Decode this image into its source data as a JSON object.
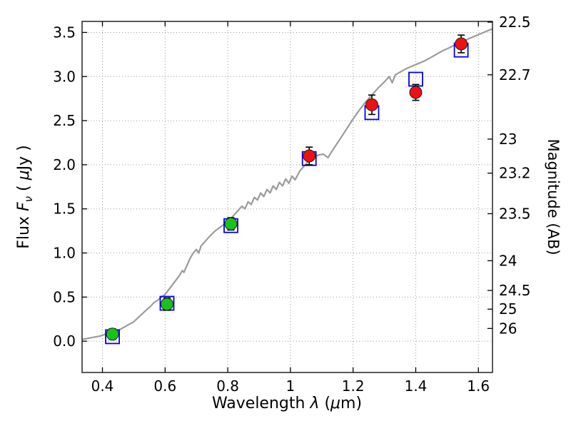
{
  "chart_data": {
    "type": "line",
    "title": "",
    "xlabel_parts": [
      "Wavelength  ",
      "λ",
      " (",
      "μ",
      "m)"
    ],
    "ylabel_left_parts": [
      "Flux  ",
      "F",
      "ν",
      " ( ",
      "μ",
      "Jy )"
    ],
    "ylabel_right": "Magnitude (AB)",
    "xlim": [
      0.335,
      1.645
    ],
    "ylim": [
      -0.355,
      3.625
    ],
    "grid": true,
    "legend": "none",
    "xticks": {
      "values": [
        0.4,
        0.6,
        0.8,
        1.0,
        1.2,
        1.4,
        1.6
      ],
      "labels": [
        "0.4",
        "0.6",
        "0.8",
        "1",
        "1.2",
        "1.4",
        "1.6"
      ]
    },
    "yticks_left": {
      "values": [
        0.0,
        0.5,
        1.0,
        1.5,
        2.0,
        2.5,
        3.0,
        3.5
      ],
      "labels": [
        "0.0",
        "0.5",
        "1.0",
        "1.5",
        "2.0",
        "2.5",
        "3.0",
        "3.5"
      ]
    },
    "yticks_right": {
      "mag_labels": [
        "22.5",
        "22.7",
        "23",
        "23.2",
        "23.5",
        "24",
        "24.5",
        "25",
        "26"
      ],
      "flux_values": [
        3.631,
        3.02,
        2.291,
        1.905,
        1.445,
        0.912,
        0.575,
        0.363,
        0.144
      ]
    },
    "colors": {
      "spectrum": "#9b9b9b",
      "model_square": "#0000ee",
      "observed_green": "#17c317",
      "observed_red": "#ee1111",
      "errorbar": "#000000",
      "grid": "#9a9a9a"
    },
    "series": [
      {
        "name": "model-spectrum",
        "type": "line",
        "color": "#9b9b9b",
        "points": [
          [
            0.335,
            0.02
          ],
          [
            0.35,
            0.03
          ],
          [
            0.365,
            0.04
          ],
          [
            0.38,
            0.05
          ],
          [
            0.395,
            0.06
          ],
          [
            0.41,
            0.08
          ],
          [
            0.425,
            0.09
          ],
          [
            0.44,
            0.11
          ],
          [
            0.455,
            0.13
          ],
          [
            0.47,
            0.16
          ],
          [
            0.485,
            0.19
          ],
          [
            0.5,
            0.22
          ],
          [
            0.515,
            0.27
          ],
          [
            0.53,
            0.32
          ],
          [
            0.545,
            0.37
          ],
          [
            0.555,
            0.4
          ],
          [
            0.565,
            0.44
          ],
          [
            0.575,
            0.46
          ],
          [
            0.585,
            0.49
          ],
          [
            0.6,
            0.53
          ],
          [
            0.615,
            0.6
          ],
          [
            0.63,
            0.67
          ],
          [
            0.645,
            0.74
          ],
          [
            0.655,
            0.8
          ],
          [
            0.66,
            0.78
          ],
          [
            0.67,
            0.86
          ],
          [
            0.68,
            0.94
          ],
          [
            0.69,
            1.0
          ],
          [
            0.7,
            1.04
          ],
          [
            0.707,
            1.0
          ],
          [
            0.715,
            1.08
          ],
          [
            0.73,
            1.14
          ],
          [
            0.745,
            1.2
          ],
          [
            0.76,
            1.25
          ],
          [
            0.775,
            1.29
          ],
          [
            0.79,
            1.33
          ],
          [
            0.8,
            1.36
          ],
          [
            0.815,
            1.41
          ],
          [
            0.83,
            1.47
          ],
          [
            0.845,
            1.53
          ],
          [
            0.855,
            1.5
          ],
          [
            0.865,
            1.58
          ],
          [
            0.875,
            1.55
          ],
          [
            0.885,
            1.63
          ],
          [
            0.895,
            1.6
          ],
          [
            0.905,
            1.68
          ],
          [
            0.915,
            1.64
          ],
          [
            0.925,
            1.72
          ],
          [
            0.935,
            1.68
          ],
          [
            0.945,
            1.76
          ],
          [
            0.955,
            1.72
          ],
          [
            0.965,
            1.8
          ],
          [
            0.975,
            1.76
          ],
          [
            0.985,
            1.84
          ],
          [
            0.995,
            1.79
          ],
          [
            1.005,
            1.87
          ],
          [
            1.015,
            1.83
          ],
          [
            1.03,
            1.93
          ],
          [
            1.045,
            1.99
          ],
          [
            1.06,
            2.05
          ],
          [
            1.075,
            2.09
          ],
          [
            1.09,
            2.11
          ],
          [
            1.105,
            2.12
          ],
          [
            1.12,
            2.08
          ],
          [
            1.13,
            2.14
          ],
          [
            1.145,
            2.22
          ],
          [
            1.16,
            2.3
          ],
          [
            1.18,
            2.41
          ],
          [
            1.2,
            2.52
          ],
          [
            1.22,
            2.62
          ],
          [
            1.24,
            2.71
          ],
          [
            1.26,
            2.79
          ],
          [
            1.28,
            2.87
          ],
          [
            1.3,
            2.94
          ],
          [
            1.315,
            3.0
          ],
          [
            1.325,
            2.93
          ],
          [
            1.335,
            3.02
          ],
          [
            1.35,
            3.05
          ],
          [
            1.37,
            3.09
          ],
          [
            1.39,
            3.12
          ],
          [
            1.41,
            3.15
          ],
          [
            1.43,
            3.18
          ],
          [
            1.45,
            3.22
          ],
          [
            1.47,
            3.26
          ],
          [
            1.49,
            3.3
          ],
          [
            1.51,
            3.33
          ],
          [
            1.53,
            3.37
          ],
          [
            1.55,
            3.4
          ],
          [
            1.57,
            3.43
          ],
          [
            1.59,
            3.46
          ],
          [
            1.61,
            3.49
          ],
          [
            1.63,
            3.52
          ],
          [
            1.645,
            3.54
          ]
        ]
      },
      {
        "name": "model-photometry",
        "type": "scatter-square-open",
        "color": "#0000ee",
        "x": [
          0.432,
          0.606,
          0.81,
          1.06,
          1.26,
          1.4,
          1.545
        ],
        "y": [
          0.05,
          0.43,
          1.31,
          2.07,
          2.59,
          2.97,
          3.3
        ]
      },
      {
        "name": "observed-photometry-green",
        "type": "scatter-circle",
        "color": "#17c317",
        "x": [
          0.432,
          0.606,
          0.81
        ],
        "y": [
          0.08,
          0.42,
          1.33
        ],
        "yerr": [
          0.06,
          0.07,
          0.07
        ]
      },
      {
        "name": "observed-photometry-red",
        "type": "scatter-circle",
        "color": "#ee1111",
        "x": [
          1.06,
          1.26,
          1.4,
          1.545
        ],
        "y": [
          2.1,
          2.68,
          2.82,
          3.37
        ],
        "yerr": [
          0.1,
          0.11,
          0.09,
          0.1
        ]
      }
    ]
  }
}
